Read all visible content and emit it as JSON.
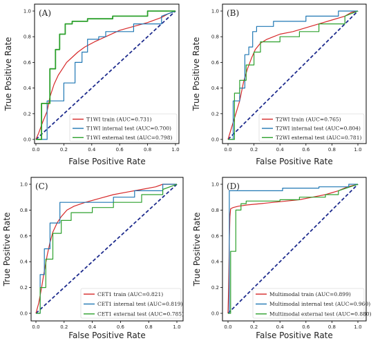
{
  "chart_data": [
    {
      "type": "line",
      "panel_label": "(A)",
      "xlabel": "False Positive Rate",
      "ylabel": "True Positive Rate",
      "xlim": [
        0,
        1
      ],
      "ylim": [
        0,
        1
      ],
      "xticks": [
        "0.0",
        "0.2",
        "0.4",
        "0.6",
        "0.8",
        "1.0"
      ],
      "yticks": [
        "0.0",
        "0.2",
        "0.4",
        "0.6",
        "0.8",
        "1.0"
      ],
      "legend_position": "lower-right",
      "chance_line": {
        "color": "#1c2a8c",
        "style": "dashed"
      },
      "series": [
        {
          "name": "T1WI train (AUC=0.731)",
          "color": "#d62728",
          "x": [
            0,
            0.02,
            0.05,
            0.08,
            0.1,
            0.13,
            0.16,
            0.19,
            0.22,
            0.26,
            0.3,
            0.35,
            0.42,
            0.5,
            0.6,
            0.7,
            0.8,
            0.9,
            0.95,
            1.0
          ],
          "y": [
            0,
            0.05,
            0.14,
            0.22,
            0.33,
            0.43,
            0.5,
            0.55,
            0.6,
            0.64,
            0.68,
            0.72,
            0.76,
            0.8,
            0.85,
            0.88,
            0.91,
            0.95,
            0.98,
            1.0
          ]
        },
        {
          "name": "T1WI internal  test (AUC=0.700)",
          "color": "#1f77b4",
          "x": [
            0,
            0.08,
            0.08,
            0.2,
            0.2,
            0.28,
            0.28,
            0.33,
            0.33,
            0.37,
            0.37,
            0.45,
            0.45,
            0.5,
            0.5,
            0.7,
            0.7,
            0.9,
            0.9,
            1.0
          ],
          "y": [
            0,
            0,
            0.3,
            0.3,
            0.44,
            0.44,
            0.6,
            0.6,
            0.68,
            0.68,
            0.78,
            0.78,
            0.8,
            0.8,
            0.84,
            0.84,
            0.9,
            0.9,
            0.96,
            1.0
          ]
        },
        {
          "name": "T1WI external  test (AUC=0.798)",
          "color": "#2ca02c",
          "x": [
            0,
            0.04,
            0.04,
            0.1,
            0.1,
            0.14,
            0.14,
            0.17,
            0.17,
            0.21,
            0.21,
            0.26,
            0.26,
            0.37,
            0.37,
            0.55,
            0.55,
            0.8,
            0.8,
            1.0
          ],
          "y": [
            0,
            0,
            0.28,
            0.28,
            0.55,
            0.55,
            0.7,
            0.7,
            0.82,
            0.82,
            0.9,
            0.9,
            0.92,
            0.92,
            0.94,
            0.94,
            0.96,
            0.96,
            1.0,
            1.0
          ]
        }
      ]
    },
    {
      "type": "line",
      "panel_label": "(B)",
      "xlabel": "False Positive Rate",
      "ylabel": "True Positive Rate",
      "xlim": [
        0,
        1
      ],
      "ylim": [
        0,
        1
      ],
      "xticks": [
        "0.0",
        "0.2",
        "0.4",
        "0.6",
        "0.8",
        "1.0"
      ],
      "yticks": [
        "0.0",
        "0.2",
        "0.4",
        "0.6",
        "0.8",
        "1.0"
      ],
      "legend_position": "lower-right",
      "chance_line": {
        "color": "#1c2a8c",
        "style": "dashed"
      },
      "series": [
        {
          "name": "T2WI train (AUC=0.765)",
          "color": "#d62728",
          "x": [
            0,
            0.03,
            0.06,
            0.09,
            0.12,
            0.15,
            0.18,
            0.21,
            0.25,
            0.3,
            0.35,
            0.4,
            0.5,
            0.6,
            0.7,
            0.8,
            0.9,
            0.95,
            1.0
          ],
          "y": [
            0,
            0.1,
            0.2,
            0.3,
            0.45,
            0.55,
            0.63,
            0.7,
            0.75,
            0.78,
            0.8,
            0.82,
            0.84,
            0.87,
            0.9,
            0.93,
            0.96,
            0.99,
            1.0
          ]
        },
        {
          "name": "T2WI internal  test (AUC=0.804)",
          "color": "#1f77b4",
          "x": [
            0,
            0.04,
            0.04,
            0.09,
            0.09,
            0.13,
            0.13,
            0.16,
            0.16,
            0.19,
            0.19,
            0.22,
            0.22,
            0.35,
            0.35,
            0.6,
            0.6,
            0.85,
            0.85,
            1.0
          ],
          "y": [
            0,
            0,
            0.3,
            0.3,
            0.4,
            0.4,
            0.66,
            0.66,
            0.72,
            0.72,
            0.84,
            0.84,
            0.88,
            0.88,
            0.92,
            0.92,
            0.96,
            0.96,
            1.0,
            1.0
          ]
        },
        {
          "name": "T2WI external  test (AUC=0.781)",
          "color": "#2ca02c",
          "x": [
            0,
            0.05,
            0.05,
            0.09,
            0.09,
            0.14,
            0.14,
            0.2,
            0.2,
            0.25,
            0.25,
            0.4,
            0.4,
            0.55,
            0.55,
            0.7,
            0.7,
            0.9,
            0.9,
            1.0
          ],
          "y": [
            0,
            0,
            0.36,
            0.36,
            0.46,
            0.46,
            0.58,
            0.58,
            0.68,
            0.68,
            0.76,
            0.76,
            0.8,
            0.8,
            0.84,
            0.84,
            0.9,
            0.9,
            0.96,
            1.0
          ]
        }
      ]
    },
    {
      "type": "line",
      "panel_label": "(C)",
      "xlabel": "False Positive Rate",
      "ylabel": "True Positive Rate",
      "xlim": [
        0,
        1
      ],
      "ylim": [
        0,
        1
      ],
      "xticks": [
        "0.0",
        "0.2",
        "0.4",
        "0.6",
        "0.8",
        "1.0"
      ],
      "yticks": [
        "0.0",
        "0.2",
        "0.4",
        "0.6",
        "0.8",
        "1.0"
      ],
      "legend_position": "lower-right",
      "chance_line": {
        "color": "#1c2a8c",
        "style": "dashed"
      },
      "series": [
        {
          "name": "CET1 train (AUC=0.821)",
          "color": "#d62728",
          "x": [
            0,
            0.02,
            0.04,
            0.06,
            0.08,
            0.1,
            0.12,
            0.15,
            0.18,
            0.22,
            0.27,
            0.35,
            0.45,
            0.55,
            0.65,
            0.75,
            0.85,
            0.9,
            1.0
          ],
          "y": [
            0,
            0.08,
            0.2,
            0.33,
            0.45,
            0.55,
            0.63,
            0.7,
            0.75,
            0.8,
            0.83,
            0.86,
            0.89,
            0.92,
            0.94,
            0.96,
            0.98,
            1.0,
            1.0
          ]
        },
        {
          "name": "CET1 internal  test (AUC=0.819)",
          "color": "#1f77b4",
          "x": [
            0,
            0.03,
            0.03,
            0.06,
            0.06,
            0.1,
            0.1,
            0.17,
            0.17,
            0.55,
            0.55,
            0.7,
            0.7,
            0.9,
            0.9,
            1.0
          ],
          "y": [
            0,
            0,
            0.3,
            0.3,
            0.5,
            0.5,
            0.7,
            0.7,
            0.86,
            0.86,
            0.9,
            0.9,
            0.95,
            0.95,
            1.0,
            1.0
          ]
        },
        {
          "name": "CET1 external  test (AUC=0.785)",
          "color": "#2ca02c",
          "x": [
            0,
            0.03,
            0.03,
            0.07,
            0.07,
            0.12,
            0.12,
            0.18,
            0.18,
            0.25,
            0.25,
            0.4,
            0.4,
            0.55,
            0.55,
            0.75,
            0.75,
            0.9,
            0.9,
            1.0
          ],
          "y": [
            0,
            0,
            0.2,
            0.2,
            0.42,
            0.42,
            0.62,
            0.62,
            0.72,
            0.72,
            0.78,
            0.78,
            0.82,
            0.82,
            0.86,
            0.86,
            0.92,
            0.92,
            0.96,
            1.0
          ]
        }
      ]
    },
    {
      "type": "line",
      "panel_label": "(D)",
      "xlabel": "False Positive Rate",
      "ylabel": "True Positive Rate",
      "xlim": [
        0,
        1
      ],
      "ylim": [
        0,
        1
      ],
      "xticks": [
        "0.0",
        "0.2",
        "0.4",
        "0.6",
        "0.8",
        "1.0"
      ],
      "yticks": [
        "0.0",
        "0.2",
        "0.4",
        "0.6",
        "0.8",
        "1.0"
      ],
      "legend_position": "lower-right",
      "chance_line": {
        "color": "#1c2a8c",
        "style": "dashed"
      },
      "series": [
        {
          "name": "Multimodal train (AUC=0.899)",
          "color": "#d62728",
          "x": [
            0,
            0.005,
            0.01,
            0.015,
            0.02,
            0.04,
            0.08,
            0.15,
            0.25,
            0.35,
            0.45,
            0.55,
            0.65,
            0.75,
            0.85,
            0.92,
            1.0
          ],
          "y": [
            0,
            0.2,
            0.55,
            0.75,
            0.81,
            0.82,
            0.83,
            0.84,
            0.85,
            0.86,
            0.87,
            0.88,
            0.9,
            0.92,
            0.95,
            0.98,
            1.0
          ]
        },
        {
          "name": "Multimodal internal  test (AUC=0.960)",
          "color": "#1f77b4",
          "x": [
            0,
            0.01,
            0.01,
            0.42,
            0.42,
            0.7,
            0.7,
            0.93,
            0.93,
            1.0
          ],
          "y": [
            0,
            0,
            0.95,
            0.95,
            0.97,
            0.97,
            0.98,
            0.98,
            1.0,
            1.0
          ]
        },
        {
          "name": "Multimodal external  test (AUC=0.880)",
          "color": "#2ca02c",
          "x": [
            0,
            0.02,
            0.02,
            0.06,
            0.06,
            0.1,
            0.1,
            0.14,
            0.14,
            0.4,
            0.4,
            0.55,
            0.55,
            0.75,
            0.75,
            0.85,
            0.85,
            1.0
          ],
          "y": [
            0,
            0,
            0.48,
            0.48,
            0.8,
            0.8,
            0.85,
            0.85,
            0.87,
            0.87,
            0.88,
            0.88,
            0.9,
            0.9,
            0.92,
            0.92,
            0.95,
            1.0
          ]
        }
      ]
    }
  ]
}
